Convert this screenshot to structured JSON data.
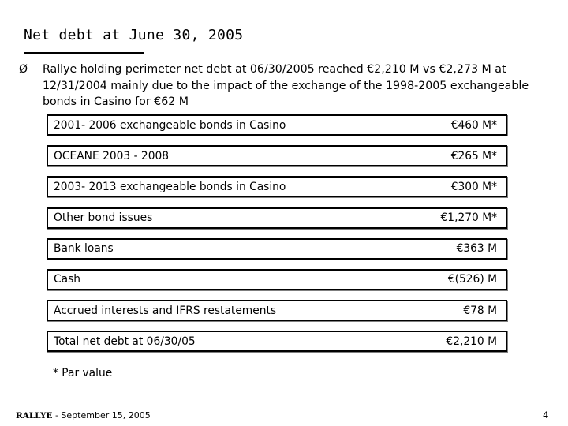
{
  "slide": {
    "title": "Net debt at June 30, 2005",
    "bullet_icon": "arrow-bullet-icon",
    "bullet_symbol": "Ø",
    "bullet_text": "Rallye holding perimeter net debt at 06/30/2005 reached €2,210 M vs €2,273 M at 12/31/2004 mainly due to the impact of the exchange of the 1998-2005 exchangeable bonds in Casino for €62 M",
    "rows": [
      {
        "label": "2001- 2006 exchangeable bonds in Casino",
        "value": "€460 M*"
      },
      {
        "label": "OCEANE 2003 - 2008",
        "value": "€265 M*"
      },
      {
        "label": "2003- 2013 exchangeable bonds in Casino",
        "value": "€300 M*"
      },
      {
        "label": "Other bond issues",
        "value": "€1,270 M*"
      },
      {
        "label": "Bank loans",
        "value": "€363 M"
      },
      {
        "label": "Cash",
        "value": "€(526) M"
      },
      {
        "label": "Accrued interests and IFRS restatements",
        "value": "€78 M"
      },
      {
        "label": "Total net debt at 06/30/05",
        "value": "€2,210 M"
      }
    ],
    "footnote": "* Par value",
    "footer": {
      "brand": "RALLYE",
      "date": " - September 15, 2005",
      "page_number": "4"
    }
  }
}
